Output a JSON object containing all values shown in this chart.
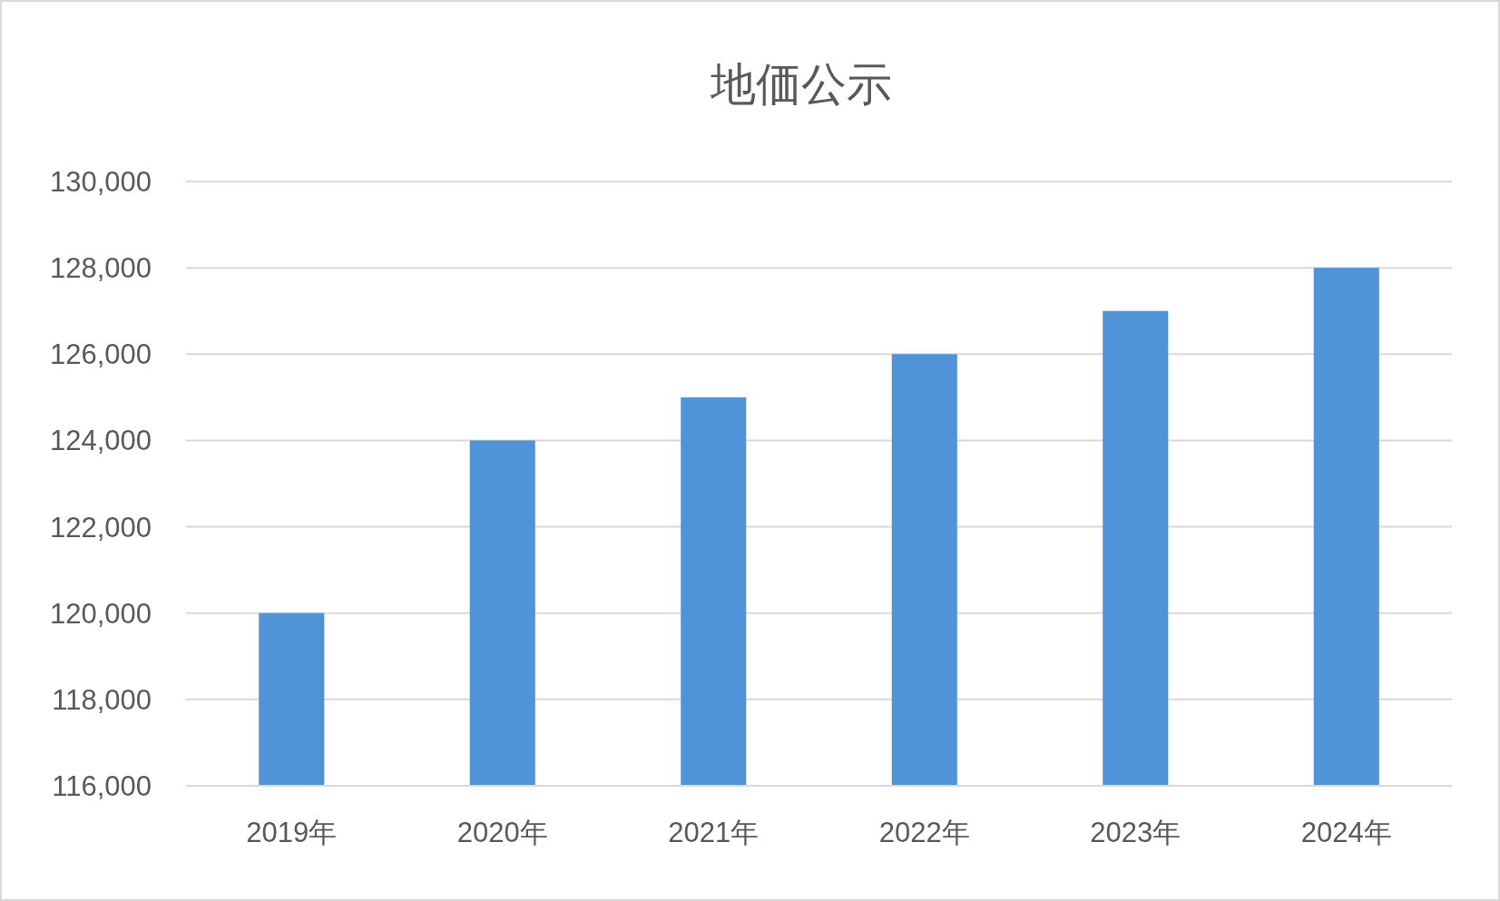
{
  "chart_data": {
    "type": "bar",
    "title": "地価公示",
    "categories": [
      "2019年",
      "2020年",
      "2021年",
      "2022年",
      "2023年",
      "2024年"
    ],
    "values": [
      120000,
      124000,
      125000,
      126000,
      127000,
      128000
    ],
    "color": "#4f94d8",
    "ylim": [
      116000,
      130000
    ],
    "yticks": [
      {
        "value": 116000,
        "label": "116,000"
      },
      {
        "value": 118000,
        "label": "118,000"
      },
      {
        "value": 120000,
        "label": "120,000"
      },
      {
        "value": 122000,
        "label": "122,000"
      },
      {
        "value": 124000,
        "label": "124,000"
      },
      {
        "value": 126000,
        "label": "126,000"
      },
      {
        "value": 128000,
        "label": "128,000"
      },
      {
        "value": 130000,
        "label": "130,000"
      }
    ],
    "grid": "y",
    "legend": false
  }
}
